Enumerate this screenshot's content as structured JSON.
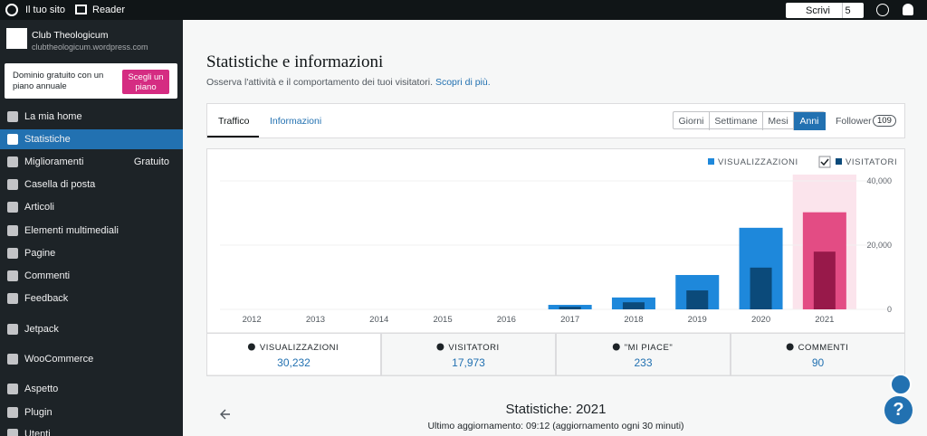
{
  "topbar": {
    "site": "Il tuo sito",
    "reader": "Reader",
    "write": "Scrivi",
    "drafts": "5"
  },
  "site": {
    "name": "Club Theologicum",
    "url": "clubtheologicum.wordpress.com"
  },
  "promo": {
    "text": "Dominio gratuito con un piano annuale",
    "button": "Scegli un piano"
  },
  "menu": [
    {
      "label": "La mia home"
    },
    {
      "label": "Statistiche"
    },
    {
      "label": "Miglioramenti",
      "badge": "Gratuito"
    },
    {
      "label": "Casella di posta"
    },
    {
      "label": "Articoli"
    },
    {
      "label": "Elementi multimediali"
    },
    {
      "label": "Pagine"
    },
    {
      "label": "Commenti"
    },
    {
      "label": "Feedback"
    },
    {
      "label": "Jetpack"
    },
    {
      "label": "WooCommerce"
    },
    {
      "label": "Aspetto"
    },
    {
      "label": "Plugin"
    },
    {
      "label": "Utenti"
    }
  ],
  "header": {
    "title": "Statistiche e informazioni",
    "subtitle": "Osserva l'attività e il comportamento dei tuoi visitatori.",
    "link": "Scopri di più."
  },
  "tabs": [
    "Traffico",
    "Informazioni"
  ],
  "periods": [
    "Giorni",
    "Settimane",
    "Mesi",
    "Anni"
  ],
  "follower": {
    "label": "Follower",
    "count": "109"
  },
  "chart_data": {
    "type": "bar",
    "categories": [
      "2012",
      "2013",
      "2014",
      "2015",
      "2016",
      "2017",
      "2018",
      "2019",
      "2020",
      "2021"
    ],
    "series": [
      {
        "name": "VISUALIZZAZIONI",
        "color": "#1e88db",
        "values": [
          0,
          0,
          0,
          0,
          0,
          1400,
          3700,
          10700,
          25400,
          30232
        ]
      },
      {
        "name": "VISITATORI",
        "color": "#0b4a7a",
        "values": [
          0,
          0,
          0,
          0,
          0,
          800,
          2200,
          5900,
          13000,
          17973
        ]
      }
    ],
    "selected": "2021",
    "highlight_colors": [
      "#e34c84",
      "#98194a"
    ],
    "highlight_band": "#fbe4ec",
    "ylim": [
      0,
      40000
    ],
    "yticks": [
      0,
      {
        "value": 20000,
        "label": "20,000"
      },
      {
        "value": 40000,
        "label": "40,000"
      }
    ],
    "grid": true
  },
  "summary": [
    {
      "label": "VISUALIZZAZIONI",
      "value": "30,232"
    },
    {
      "label": "VISITATORI",
      "value": "17,973"
    },
    {
      "label": "\"MI PIACE\"",
      "value": "233"
    },
    {
      "label": "COMMENTI",
      "value": "90"
    }
  ],
  "footer": {
    "title": "Statistiche: 2021",
    "updated": "Ultimo aggiornamento: 09:12 (aggiornamento ogni 30 minuti)"
  }
}
